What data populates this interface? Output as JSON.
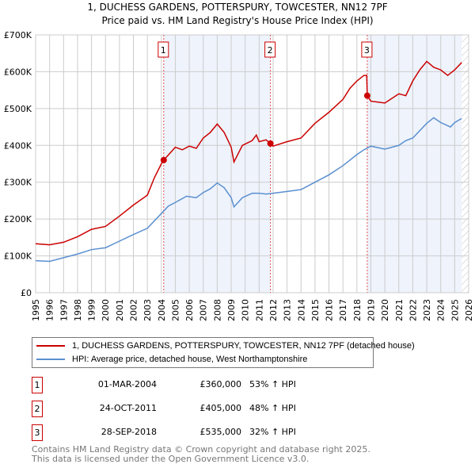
{
  "chart_data": {
    "type": "line",
    "title": "1, DUCHESS GARDENS, POTTERSPURY, TOWCESTER, NN12 7PF",
    "subtitle": "Price paid vs. HM Land Registry's House Price Index (HPI)",
    "xlim": [
      1995,
      2026
    ],
    "ylim": [
      0,
      700000
    ],
    "yticks": [
      {
        "v": 0,
        "label": "£0"
      },
      {
        "v": 100000,
        "label": "£100K"
      },
      {
        "v": 200000,
        "label": "£200K"
      },
      {
        "v": 300000,
        "label": "£300K"
      },
      {
        "v": 400000,
        "label": "£400K"
      },
      {
        "v": 500000,
        "label": "£500K"
      },
      {
        "v": 600000,
        "label": "£600K"
      },
      {
        "v": 700000,
        "label": "£700K"
      }
    ],
    "xticks": [
      "1995",
      "1996",
      "1997",
      "1998",
      "1999",
      "2000",
      "2001",
      "2002",
      "2003",
      "2004",
      "2005",
      "2006",
      "2007",
      "2008",
      "2009",
      "2010",
      "2011",
      "2012",
      "2013",
      "2014",
      "2015",
      "2016",
      "2017",
      "2018",
      "2019",
      "2020",
      "2021",
      "2022",
      "2023",
      "2024",
      "2025",
      "2026"
    ],
    "grid": true,
    "series": [
      {
        "name": "1, DUCHESS GARDENS, POTTERSPURY, TOWCESTER, NN12 7PF (detached house)",
        "color": "#cc0000",
        "x": [
          1995,
          1996,
          1997,
          1998,
          1999,
          2000,
          2001,
          2002,
          2003,
          2003.5,
          2004,
          2004.17,
          2005,
          2005.5,
          2006,
          2006.5,
          2007,
          2007.5,
          2008,
          2008.5,
          2009,
          2009.2,
          2009.8,
          2010.5,
          2010.8,
          2011,
          2011.5,
          2011.8,
          2012,
          2013,
          2014,
          2015,
          2016,
          2017,
          2017.5,
          2018,
          2018.5,
          2018.7,
          2018.74,
          2019,
          2020,
          2021,
          2021.5,
          2022,
          2022.5,
          2023,
          2023.5,
          2024,
          2024.5,
          2025,
          2025.5
        ],
        "y": [
          133000,
          130000,
          137000,
          152000,
          172000,
          180000,
          208000,
          238000,
          265000,
          312000,
          350000,
          360000,
          395000,
          388000,
          398000,
          392000,
          420000,
          435000,
          458000,
          435000,
          395000,
          355000,
          400000,
          413000,
          428000,
          410000,
          415000,
          405000,
          398000,
          410000,
          420000,
          460000,
          490000,
          525000,
          555000,
          575000,
          590000,
          590000,
          535000,
          520000,
          515000,
          540000,
          535000,
          575000,
          605000,
          628000,
          612000,
          605000,
          590000,
          605000,
          625000
        ]
      },
      {
        "name": "HPI: Average price, detached house, West Northamptonshire",
        "color": "#5b8fd0",
        "x": [
          1995,
          1996,
          1997,
          1998,
          1999,
          2000,
          2001,
          2002,
          2003,
          2004,
          2004.5,
          2005,
          2005.8,
          2006.5,
          2007,
          2007.5,
          2008,
          2008.5,
          2009,
          2009.2,
          2009.8,
          2010.5,
          2011,
          2011.5,
          2012,
          2013,
          2014,
          2015,
          2016,
          2017,
          2018,
          2018.5,
          2019,
          2020,
          2021,
          2021.5,
          2022,
          2023,
          2023.5,
          2024,
          2024.7,
          2025,
          2025.5
        ],
        "y": [
          87000,
          85000,
          95000,
          105000,
          117000,
          122000,
          140000,
          158000,
          175000,
          215000,
          235000,
          245000,
          262000,
          258000,
          272000,
          282000,
          298000,
          285000,
          258000,
          233000,
          258000,
          270000,
          270000,
          268000,
          270000,
          275000,
          280000,
          300000,
          320000,
          345000,
          375000,
          388000,
          398000,
          390000,
          400000,
          413000,
          420000,
          460000,
          475000,
          462000,
          450000,
          462000,
          473000
        ]
      }
    ],
    "sales": [
      {
        "n": "1",
        "x": 2004.17,
        "y": 360000,
        "date": "01-MAR-2004",
        "price": "£360,000",
        "hpi": "53% ↑ HPI"
      },
      {
        "n": "2",
        "x": 2011.81,
        "y": 405000,
        "date": "24-OCT-2011",
        "price": "£405,000",
        "hpi": "48% ↑ HPI"
      },
      {
        "n": "3",
        "x": 2018.74,
        "y": 535000,
        "date": "28-SEP-2018",
        "price": "£535,000",
        "hpi": "32% ↑ HPI"
      }
    ],
    "shaded": [
      [
        2004.17,
        2011.81
      ],
      [
        2018.74,
        2025.5
      ]
    ],
    "hatch_from": 2025.5,
    "legend_position": "below"
  },
  "footer": [
    "Contains HM Land Registry data © Crown copyright and database right 2025.",
    "This data is licensed under the Open Government Licence v3.0."
  ]
}
